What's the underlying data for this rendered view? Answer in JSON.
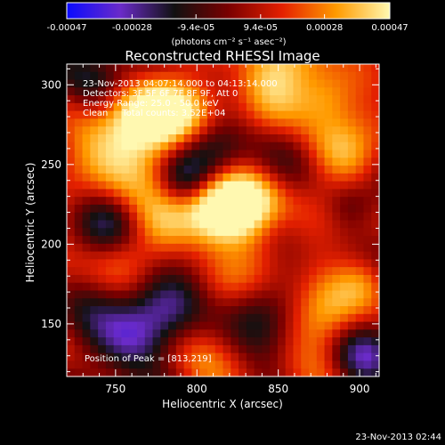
{
  "chart_data": {
    "type": "heatmap",
    "title": "Reconstructed RHESSI Image",
    "xlabel": "Heliocentric X (arcsec)",
    "ylabel": "Heliocentric Y (arcsec)",
    "xlim": [
      720,
      912
    ],
    "ylim": [
      117,
      313
    ],
    "x_ticks": [
      750,
      800,
      850,
      900
    ],
    "y_ticks": [
      150,
      200,
      250,
      300
    ],
    "grid": false,
    "colorbar": {
      "position": "top",
      "range": [
        -0.00047,
        0.00047
      ],
      "tick_values": [
        -0.00047,
        -0.00028,
        -9.4e-05,
        9.4e-05,
        0.00028,
        0.00047
      ],
      "tick_labels": [
        "-0.00047",
        "-0.00028",
        "-9.4e-05",
        "9.4e-05",
        "0.00028",
        "0.00047"
      ],
      "unit_label": "(photons cm⁻² s⁻¹ asec⁻²)",
      "colormap_stops": [
        "#0a0aff",
        "#6a2bc8",
        "#111111",
        "#7a0000",
        "#e42000",
        "#ff9a00",
        "#fff8b0"
      ]
    },
    "annotations": [
      "23-Nov-2013 04:07:14.000 to 04:13:14.000",
      "Detectors: 3F 5F 6F 7F 8F 9F, Att 0",
      "Energy Range: 25.0 - 50.0 keV",
      "Clean     Total counts: 3.52E+04"
    ],
    "peak_label": "Position of Peak = [813,219]",
    "peak": [
      813,
      219
    ],
    "grid_size": [
      40,
      40
    ],
    "blobs": [
      [
        755,
        260,
        20,
        0.92
      ],
      [
        767,
        282,
        16,
        0.6
      ],
      [
        812,
        220,
        16,
        1.0
      ],
      [
        828,
        235,
        22,
        0.72
      ],
      [
        840,
        190,
        18,
        0.5
      ],
      [
        795,
        285,
        18,
        0.62
      ],
      [
        850,
        305,
        18,
        0.75
      ],
      [
        880,
        292,
        14,
        0.68
      ],
      [
        888,
        258,
        16,
        0.55
      ],
      [
        875,
        150,
        18,
        0.58
      ],
      [
        905,
        178,
        12,
        0.45
      ],
      [
        800,
        140,
        18,
        0.38
      ],
      [
        752,
        195,
        14,
        0.38
      ],
      [
        778,
        210,
        14,
        0.42
      ],
      [
        870,
        222,
        16,
        0.35
      ],
      [
        735,
        300,
        14,
        -0.55
      ],
      [
        792,
        240,
        12,
        -0.6
      ],
      [
        808,
        258,
        16,
        -0.75
      ],
      [
        850,
        258,
        16,
        -0.5
      ],
      [
        745,
        210,
        14,
        -0.45
      ],
      [
        760,
        140,
        18,
        -0.8
      ],
      [
        780,
        165,
        16,
        -0.55
      ],
      [
        835,
        158,
        16,
        -0.65
      ],
      [
        850,
        210,
        14,
        -0.5
      ],
      [
        900,
        130,
        14,
        -0.6
      ],
      [
        895,
        225,
        12,
        -0.5
      ]
    ]
  },
  "footer": {
    "timestamp": "23-Nov-2013 02:44"
  }
}
